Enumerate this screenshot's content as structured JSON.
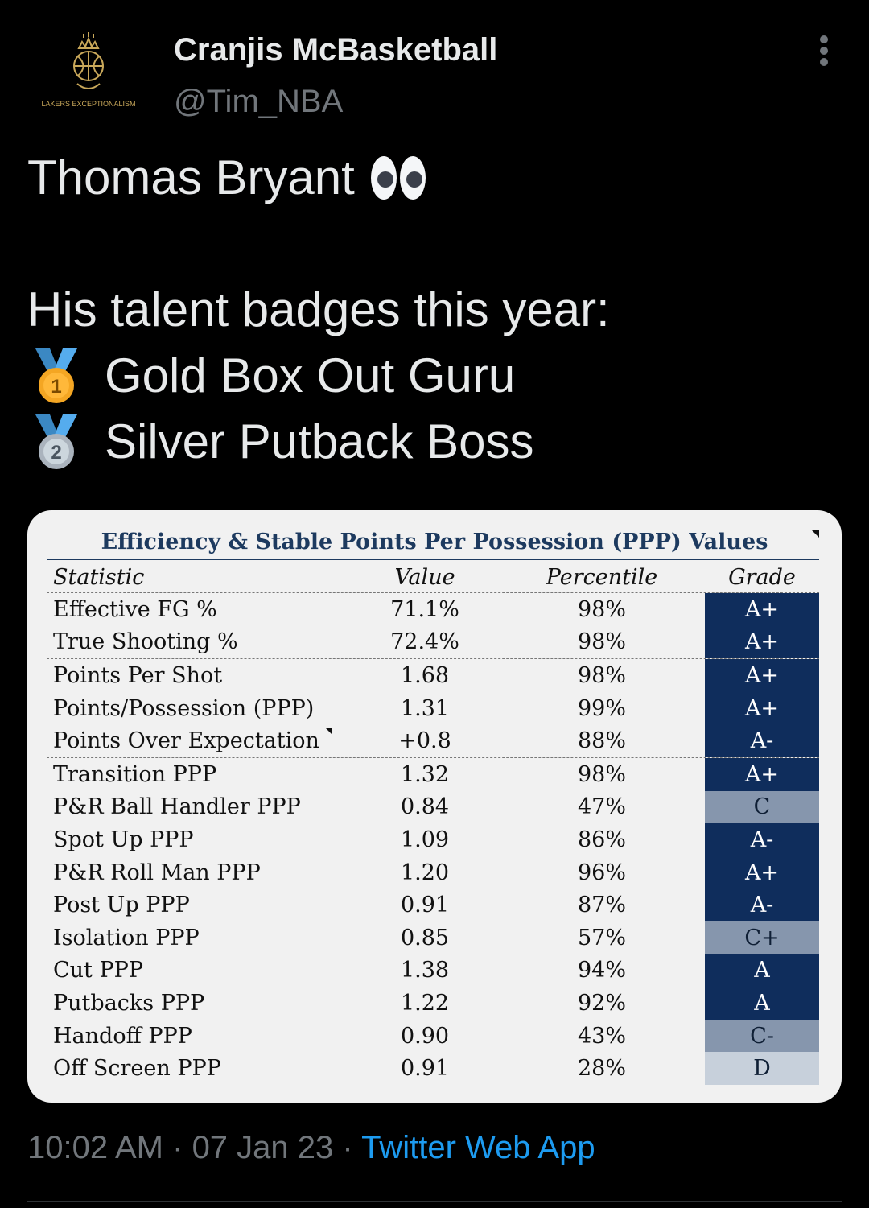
{
  "author": {
    "display_name": "Cranjis McBasketball",
    "handle": "@Tim_NBA",
    "avatar_caption": "LAKERS EXCEPTIONALISM"
  },
  "tweet": {
    "line1": "Thomas Bryant",
    "line1_emoji": "eyes-emoji",
    "line2": "His talent badges this year:",
    "badges": [
      {
        "medal": "gold-medal",
        "number": "1",
        "text": "Gold Box Out Guru"
      },
      {
        "medal": "silver-medal",
        "number": "2",
        "text": "Silver Putback Boss"
      }
    ]
  },
  "table": {
    "title": "Efficiency & Stable Points Per Possession (PPP) Values",
    "headers": {
      "stat": "Statistic",
      "value": "Value",
      "percentile": "Percentile",
      "grade": "Grade"
    },
    "rows": [
      {
        "stat": "Effective FG %",
        "value": "71.1%",
        "percentile": "98%",
        "grade": "A+",
        "shade": "dark"
      },
      {
        "stat": "True Shooting %",
        "value": "72.4%",
        "percentile": "98%",
        "grade": "A+",
        "shade": "dark"
      },
      {
        "stat": "Points Per Shot",
        "value": "1.68",
        "percentile": "98%",
        "grade": "A+",
        "shade": "dark"
      },
      {
        "stat": "Points/Possession (PPP)",
        "value": "1.31",
        "percentile": "99%",
        "grade": "A+",
        "shade": "dark"
      },
      {
        "stat": "Points Over Expectation",
        "value": "+0.8",
        "percentile": "88%",
        "grade": "A-",
        "shade": "dark"
      },
      {
        "stat": "Transition PPP",
        "value": "1.32",
        "percentile": "98%",
        "grade": "A+",
        "shade": "dark"
      },
      {
        "stat": "P&R Ball Handler PPP",
        "value": "0.84",
        "percentile": "47%",
        "grade": "C",
        "shade": "mid"
      },
      {
        "stat": "Spot Up PPP",
        "value": "1.09",
        "percentile": "86%",
        "grade": "A-",
        "shade": "dark"
      },
      {
        "stat": "P&R Roll Man PPP",
        "value": "1.20",
        "percentile": "96%",
        "grade": "A+",
        "shade": "dark"
      },
      {
        "stat": "Post Up PPP",
        "value": "0.91",
        "percentile": "87%",
        "grade": "A-",
        "shade": "dark"
      },
      {
        "stat": "Isolation PPP",
        "value": "0.85",
        "percentile": "57%",
        "grade": "C+",
        "shade": "mid"
      },
      {
        "stat": "Cut PPP",
        "value": "1.38",
        "percentile": "94%",
        "grade": "A",
        "shade": "dark"
      },
      {
        "stat": "Putbacks PPP",
        "value": "1.22",
        "percentile": "92%",
        "grade": "A",
        "shade": "dark"
      },
      {
        "stat": "Handoff PPP",
        "value": "0.90",
        "percentile": "43%",
        "grade": "C-",
        "shade": "mid"
      },
      {
        "stat": "Off Screen PPP",
        "value": "0.91",
        "percentile": "28%",
        "grade": "D",
        "shade": "light"
      }
    ]
  },
  "meta": {
    "time": "10:02 AM",
    "separator": " · ",
    "date": "07 Jan 23",
    "source": "Twitter Web App"
  },
  "colors": {
    "grade_dark": "#0f2d5c",
    "grade_mid": "#8696ad",
    "grade_light": "#c7d0db",
    "link": "#1d9bf0"
  }
}
